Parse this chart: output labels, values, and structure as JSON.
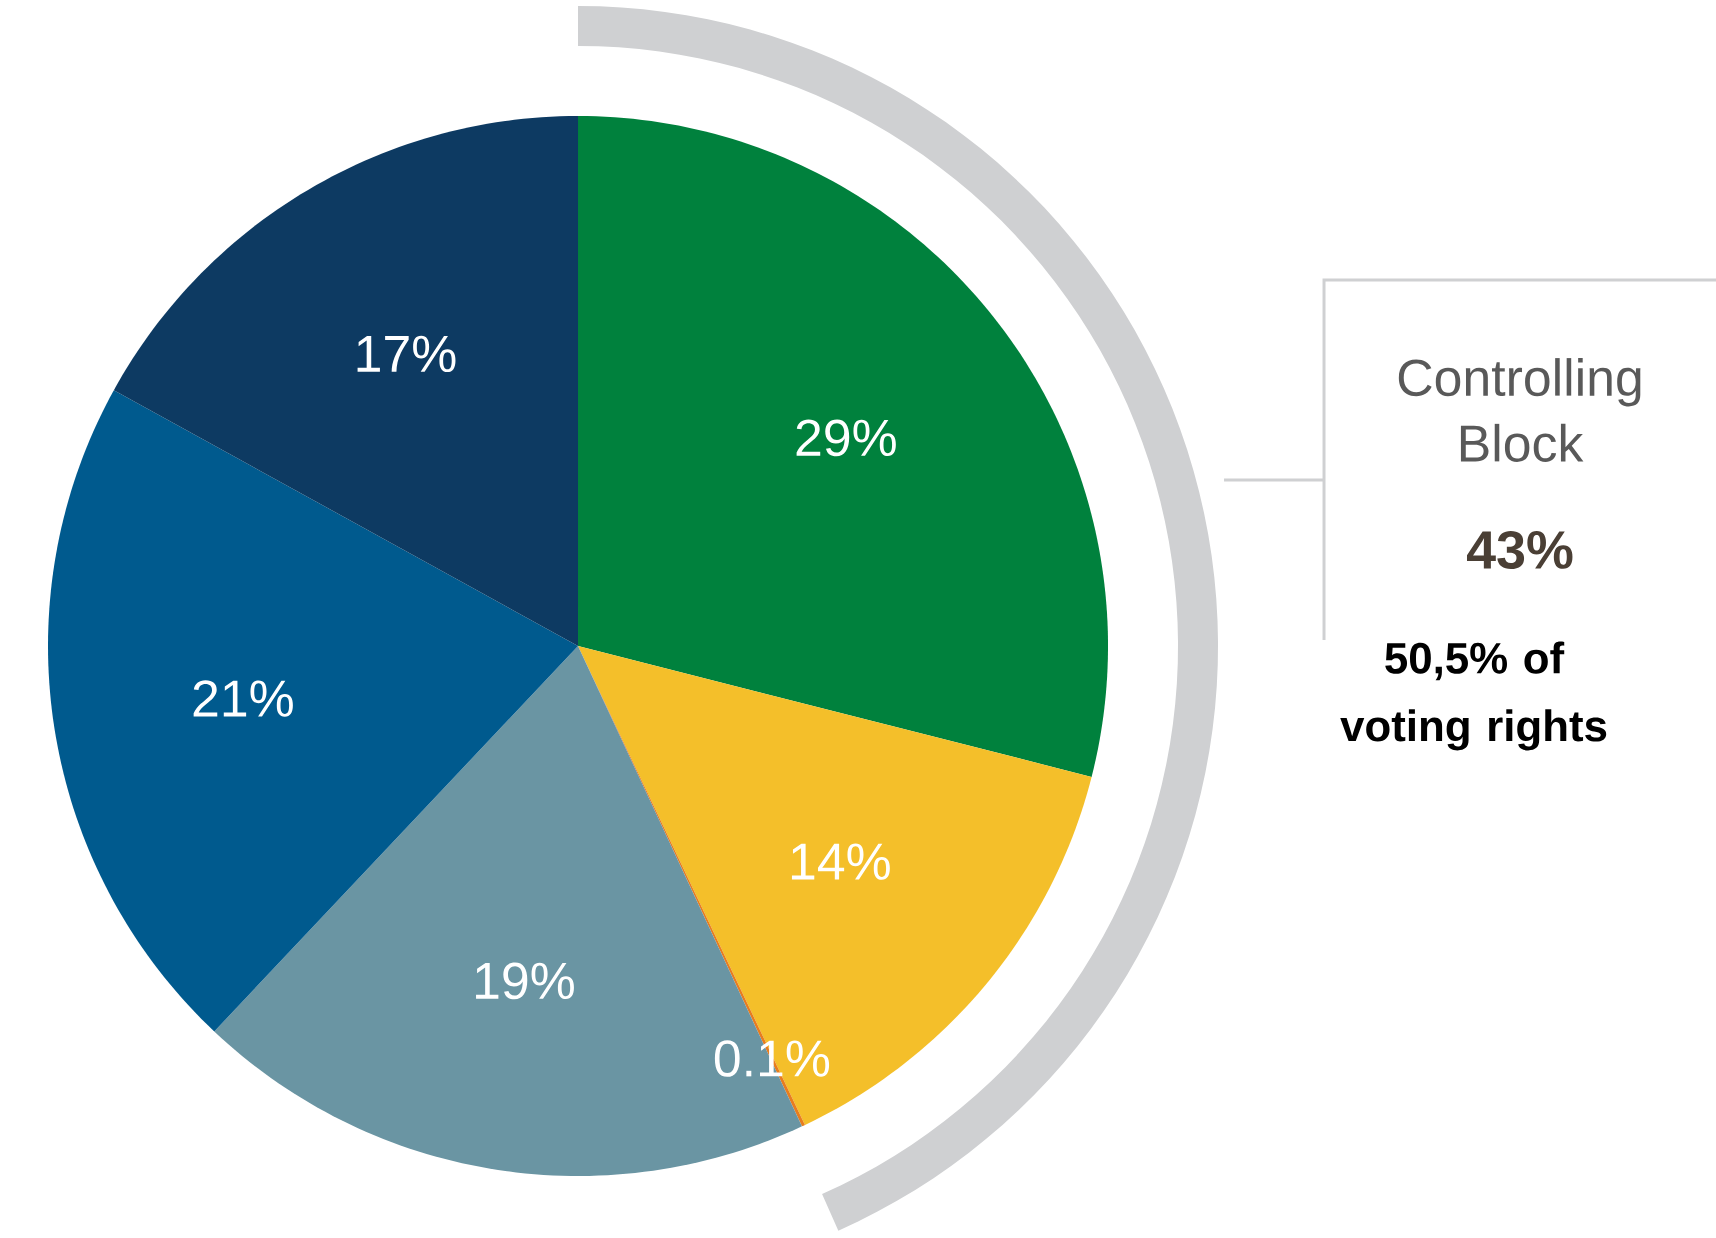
{
  "chart_data": {
    "type": "pie",
    "categories": [
      null,
      null,
      null,
      null,
      null,
      null
    ],
    "values": [
      29,
      14,
      0.1,
      19,
      21,
      17
    ],
    "value_labels": [
      "29%",
      "14%",
      "0.1%",
      "19%",
      "21%",
      "17%"
    ],
    "colors": [
      "#00813d",
      "#f4bf2a",
      "#e87d1e",
      "#6a95a3",
      "#005a8e",
      "#0d3a62"
    ],
    "annotations": [
      "Controlling Block",
      "43%",
      "50,5% of voting rights"
    ]
  }
}
